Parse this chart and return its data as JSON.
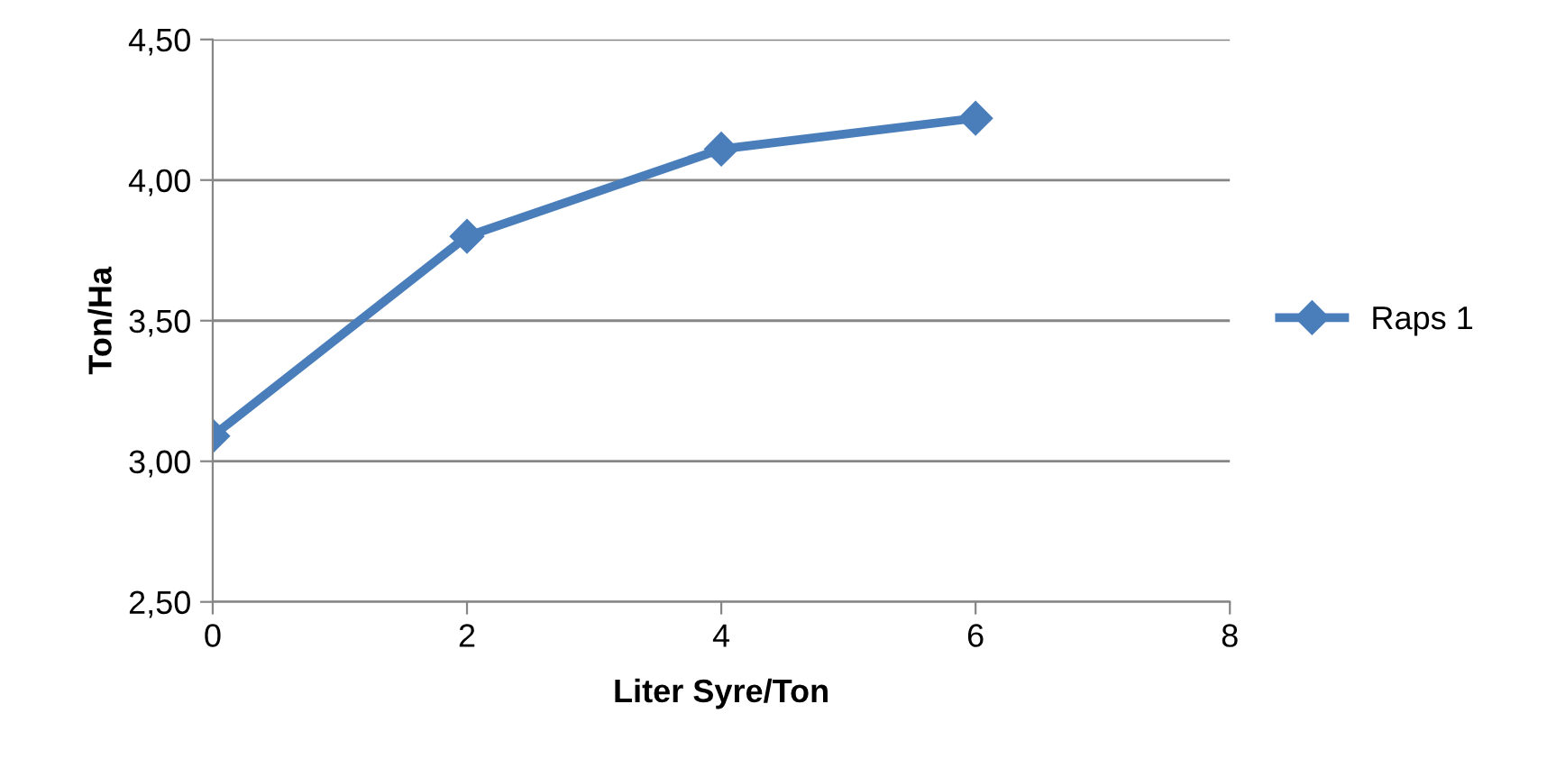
{
  "chart_data": {
    "type": "line",
    "xlabel": "Liter Syre/Ton",
    "ylabel": "Ton/Ha",
    "x": [
      0,
      2,
      4,
      6
    ],
    "series": [
      {
        "name": "Raps 1",
        "color": "#4a7ebb",
        "values": [
          3.09,
          3.8,
          4.11,
          4.22
        ]
      }
    ],
    "xlim": [
      0,
      8
    ],
    "xticks": [
      0,
      2,
      4,
      6,
      8
    ],
    "ylim": [
      2.5,
      4.5
    ],
    "yticks": [
      {
        "value": 2.5,
        "label": "2,50"
      },
      {
        "value": 3.0,
        "label": "3,00"
      },
      {
        "value": 3.5,
        "label": "3,50"
      },
      {
        "value": 4.0,
        "label": "4,00"
      },
      {
        "value": 4.5,
        "label": "4,50"
      }
    ],
    "grid": "y",
    "legend": "right",
    "marker": "diamond",
    "line_style": "solid"
  }
}
